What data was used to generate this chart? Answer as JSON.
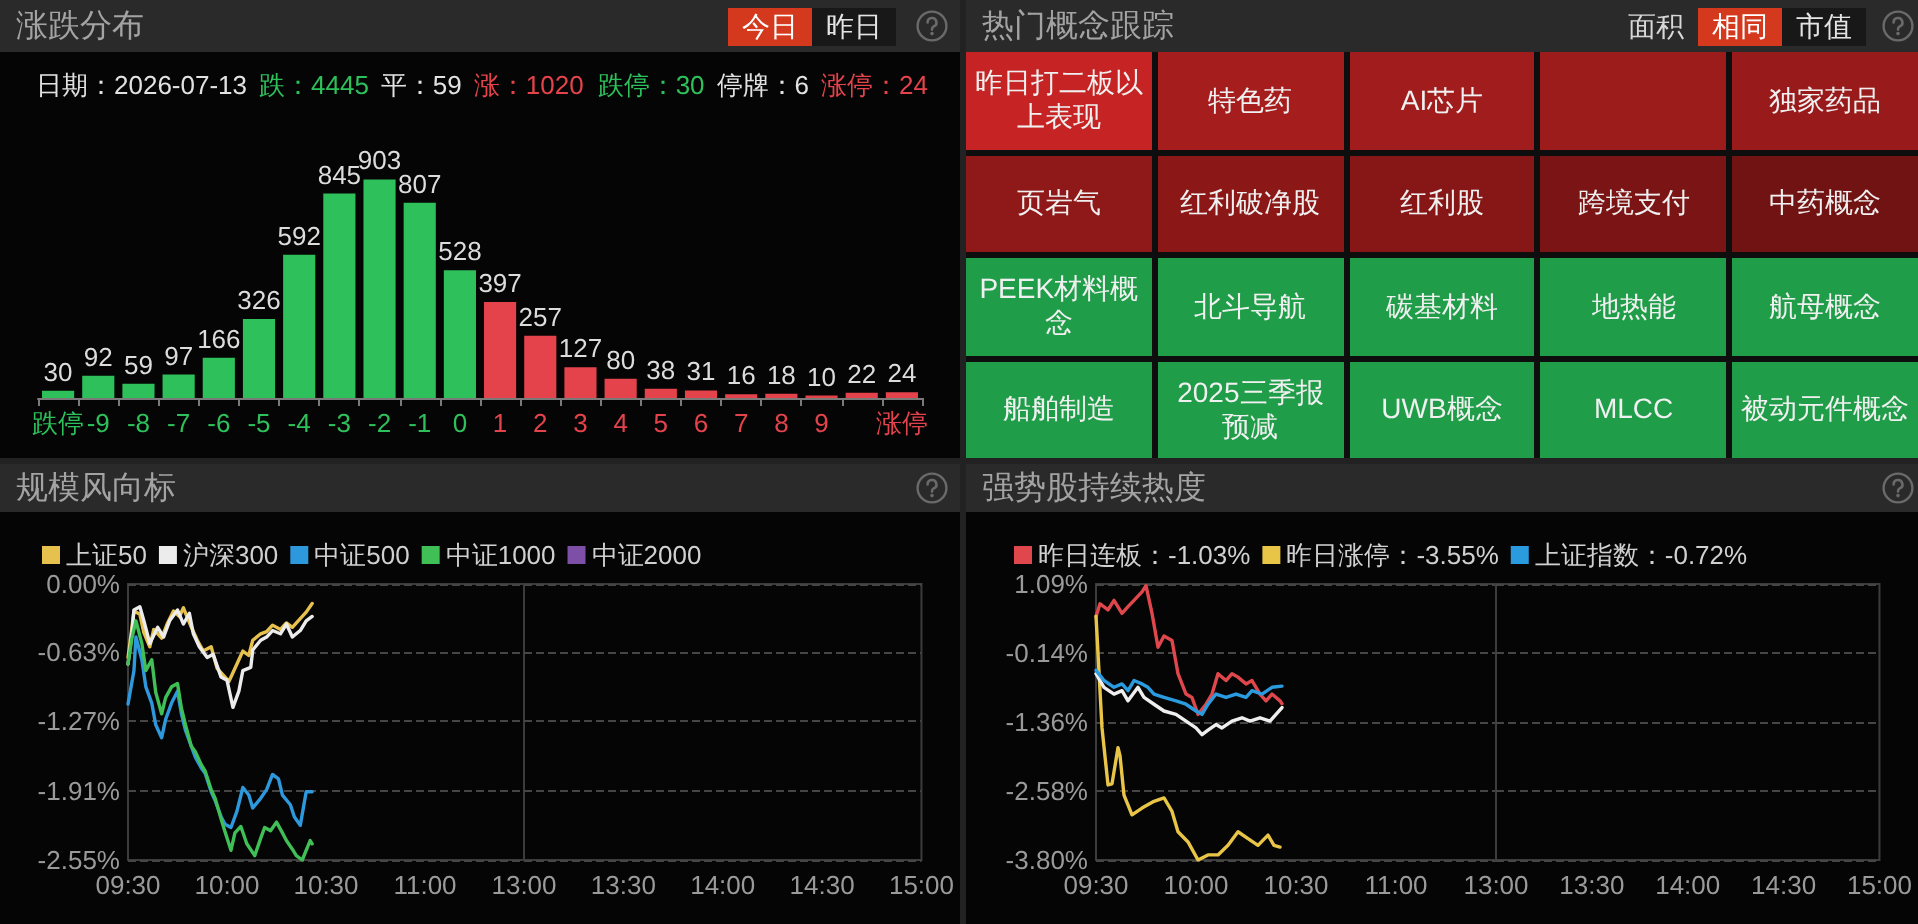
{
  "chart_data": [
    {
      "type": "bar",
      "title": "涨跌分布",
      "annotations": [
        "今日",
        "昨日",
        "日期：2026-07-13",
        "跌：4445",
        "平：59",
        "涨：1020",
        "跌停：30",
        "停牌：6",
        "涨停：24"
      ],
      "categories": [
        "跌停",
        "-9",
        "-8",
        "-7",
        "-6",
        "-5",
        "-4",
        "-3",
        "-2",
        "-1",
        "0",
        "1",
        "2",
        "3",
        "4",
        "5",
        "6",
        "7",
        "8",
        "9",
        null,
        "涨停"
      ],
      "values": [
        30,
        92,
        59,
        97,
        166,
        326,
        592,
        845,
        903,
        807,
        528,
        397,
        257,
        127,
        80,
        38,
        31,
        16,
        18,
        10,
        22,
        24
      ],
      "colors": [
        "#2ec05a",
        "#2ec05a",
        "#2ec05a",
        "#2ec05a",
        "#2ec05a",
        "#2ec05a",
        "#2ec05a",
        "#2ec05a",
        "#2ec05a",
        "#2ec05a",
        "#2ec05a",
        "#e4434b",
        "#e4434b",
        "#e4434b",
        "#e4434b",
        "#e4434b",
        "#e4434b",
        "#e4434b",
        "#e4434b",
        "#e4434b",
        "#e4434b",
        "#e4434b"
      ],
      "data_labels": true
    },
    {
      "type": "other",
      "title": "热门概念跟踪",
      "annotations": [
        "面积",
        "相同",
        "市值"
      ],
      "categories": [
        "昨日打二板以上表现",
        "特色药",
        "AI芯片",
        null,
        "独家药品",
        "页岩气",
        "红利破净股",
        "红利股",
        "跨境支付",
        "中药概念",
        "PEEK材料概念",
        "北斗导航",
        "碳基材料",
        "地热能",
        "航母概念",
        "船舶制造",
        "2025三季报预减",
        "UWB概念",
        "MLCC",
        "被动元件概念"
      ],
      "colors": [
        "#c62424",
        "#a51d1d",
        "#a11c1c",
        "#9c1b1b",
        "#991a1a",
        "#8f1818",
        "#8b1717",
        "#871616",
        "#7b1414",
        "#721313",
        "#1f9d48",
        "#1f9d48",
        "#1f9d48",
        "#1f9d48",
        "#1f9d48",
        "#1f9d48",
        "#1f9d48",
        "#1f9d48",
        "#1f9d48",
        "#1f9d48"
      ]
    },
    {
      "type": "line",
      "title": "规模风向标",
      "legend": "top",
      "grid": "y",
      "xlim": [
        9.5,
        11.5
      ],
      "xticks": [
        {
          "value": 9.5,
          "label": "09:30"
        },
        {
          "value": 10,
          "label": "10:00"
        },
        {
          "value": 10.5,
          "label": "10:30"
        },
        {
          "value": 11,
          "label": "11:00"
        }
      ],
      "ylim": [
        -2.55,
        0
      ],
      "yticks": [
        {
          "value": 0,
          "label": "0.00%"
        },
        {
          "value": -0.63,
          "label": "-0.63%"
        },
        {
          "value": -1.27,
          "label": "-1.27%"
        },
        {
          "value": -1.91,
          "label": "-1.91%"
        },
        {
          "value": -2.55,
          "label": "-2.55%"
        }
      ],
      "series": [
        {
          "name": "上证50",
          "color": "#e7c14d",
          "x": [
            9.5,
            9.52,
            9.53,
            9.56,
            9.58,
            9.61,
            9.63,
            9.67,
            9.7,
            9.73,
            9.76,
            9.78,
            9.82,
            9.85,
            9.88,
            9.92,
            9.95,
            9.98,
            10.01,
            10.03,
            10.06,
            10.08,
            10.11,
            10.13,
            10.17,
            10.2,
            10.23,
            10.27,
            10.3,
            10.33,
            10.37,
            10.4,
            10.43
          ],
          "values": [
            -0.68,
            -0.4,
            -0.25,
            -0.28,
            -0.45,
            -0.58,
            -0.42,
            -0.5,
            -0.36,
            -0.25,
            -0.3,
            -0.22,
            -0.4,
            -0.52,
            -0.62,
            -0.58,
            -0.78,
            -0.84,
            -0.9,
            -0.82,
            -0.7,
            -0.62,
            -0.66,
            -0.52,
            -0.46,
            -0.44,
            -0.38,
            -0.42,
            -0.36,
            -0.4,
            -0.32,
            -0.26,
            -0.18
          ]
        },
        {
          "name": "沪深300",
          "color": "#ececec",
          "x": [
            9.5,
            9.52,
            9.53,
            9.56,
            9.58,
            9.61,
            9.65,
            9.68,
            9.71,
            9.75,
            9.78,
            9.81,
            9.83,
            9.86,
            9.9,
            9.93,
            9.97,
            10,
            10.03,
            10.06,
            10.08,
            10.12,
            10.13,
            10.17,
            10.2,
            10.23,
            10.27,
            10.3,
            10.33,
            10.37,
            10.4,
            10.43
          ],
          "values": [
            -0.74,
            -0.45,
            -0.24,
            -0.21,
            -0.34,
            -0.55,
            -0.4,
            -0.49,
            -0.34,
            -0.24,
            -0.37,
            -0.27,
            -0.46,
            -0.58,
            -0.68,
            -0.65,
            -0.86,
            -0.89,
            -1.14,
            -0.99,
            -0.8,
            -0.77,
            -0.61,
            -0.52,
            -0.49,
            -0.43,
            -0.46,
            -0.37,
            -0.49,
            -0.43,
            -0.34,
            -0.3
          ]
        },
        {
          "name": "中证500",
          "color": "#2e98dc",
          "x": [
            9.5,
            9.53,
            9.54,
            9.57,
            9.59,
            9.62,
            9.64,
            9.67,
            9.69,
            9.72,
            9.75,
            9.77,
            9.79,
            9.82,
            9.84,
            9.87,
            9.89,
            9.92,
            9.94,
            9.97,
            9.99,
            10.02,
            10.05,
            10.08,
            10.11,
            10.13,
            10.17,
            10.2,
            10.23,
            10.26,
            10.28,
            10.32,
            10.34,
            10.37,
            10.4,
            10.43
          ],
          "values": [
            -1.11,
            -0.8,
            -0.49,
            -0.7,
            -0.95,
            -1.1,
            -1.3,
            -1.42,
            -1.25,
            -1.1,
            -0.99,
            -1.2,
            -1.35,
            -1.5,
            -1.6,
            -1.7,
            -1.75,
            -1.92,
            -2,
            -2.15,
            -2.22,
            -2.25,
            -2.1,
            -1.88,
            -1.95,
            -2.07,
            -1.98,
            -1.9,
            -1.76,
            -1.8,
            -1.95,
            -2.04,
            -2.15,
            -2.23,
            -1.92,
            -1.92
          ]
        },
        {
          "name": "中证1000",
          "color": "#3fbf55",
          "x": [
            9.5,
            9.52,
            9.54,
            9.57,
            9.59,
            9.62,
            9.64,
            9.67,
            9.69,
            9.72,
            9.75,
            9.77,
            9.79,
            9.82,
            9.84,
            9.87,
            9.89,
            9.92,
            9.94,
            9.97,
            9.99,
            10.02,
            10.04,
            10.07,
            10.1,
            10.14,
            10.17,
            10.19,
            10.22,
            10.25,
            10.28,
            10.3,
            10.33,
            10.35,
            10.38,
            10.42,
            10.43
          ],
          "values": [
            -0.74,
            -0.5,
            -0.34,
            -0.55,
            -0.8,
            -0.7,
            -1,
            -1.2,
            -1.05,
            -0.95,
            -0.92,
            -1.15,
            -1.3,
            -1.5,
            -1.55,
            -1.67,
            -1.73,
            -1.9,
            -1.98,
            -2.17,
            -2.29,
            -2.46,
            -2.3,
            -2.24,
            -2.4,
            -2.51,
            -2.35,
            -2.25,
            -2.28,
            -2.2,
            -2.3,
            -2.37,
            -2.45,
            -2.51,
            -2.55,
            -2.37,
            -2.4
          ]
        },
        {
          "name": "中证2000",
          "color": "#7d4fa6"
        }
      ]
    },
    {
      "type": "line",
      "grid": "y",
      "tick_labels": "x",
      "xlim": [
        13,
        15
      ],
      "xticks": [
        {
          "value": 13,
          "label": "13:00"
        },
        {
          "value": 13.5,
          "label": "13:30"
        },
        {
          "value": 14,
          "label": "14:00"
        },
        {
          "value": 14.5,
          "label": "14:30"
        },
        {
          "value": 15,
          "label": "15:00"
        }
      ],
      "ylim": [
        -2.55,
        0
      ],
      "yticks": [
        0,
        -0.63,
        -1.27,
        -1.91,
        -2.55
      ]
    },
    {
      "type": "line",
      "title": "强势股持续热度",
      "legend": "top",
      "grid": "y",
      "xlim": [
        9.5,
        11.5
      ],
      "xticks": [
        {
          "value": 9.5,
          "label": "09:30"
        },
        {
          "value": 10,
          "label": "10:00"
        },
        {
          "value": 10.5,
          "label": "10:30"
        },
        {
          "value": 11,
          "label": "11:00"
        }
      ],
      "ylim": [
        -3.8,
        1.09
      ],
      "yticks": [
        {
          "value": 1.09,
          "label": "1.09%"
        },
        {
          "value": -0.14,
          "label": "-0.14%"
        },
        {
          "value": -1.36,
          "label": "-1.36%"
        },
        {
          "value": -2.58,
          "label": "-2.58%"
        },
        {
          "value": -3.8,
          "label": "-3.80%"
        }
      ],
      "series": [
        {
          "name": "昨日连板：-1.03%",
          "color": "#e0474c",
          "x": [
            9.5,
            9.52,
            9.56,
            9.59,
            9.63,
            9.66,
            9.69,
            9.73,
            9.75,
            9.78,
            9.81,
            9.84,
            9.88,
            9.91,
            9.95,
            9.98,
            10.01,
            10.05,
            10.08,
            10.11,
            10.15,
            10.18,
            10.21,
            10.25,
            10.28,
            10.32,
            10.35,
            10.38,
            10.42,
            10.43
          ],
          "values": [
            0.51,
            0.74,
            0.63,
            0.8,
            0.57,
            0.69,
            0.8,
            0.95,
            1.06,
            0.57,
            -0.03,
            0.17,
            0.09,
            -0.5,
            -0.86,
            -0.92,
            -1.22,
            -1.04,
            -0.86,
            -0.5,
            -0.62,
            -0.5,
            -0.56,
            -0.68,
            -0.62,
            -0.86,
            -0.98,
            -0.86,
            -0.98,
            -1.03
          ]
        },
        {
          "name": "昨日涨停：-3.55%",
          "color": "#e8c547",
          "x": [
            9.5,
            9.53,
            9.56,
            9.58,
            9.61,
            9.62,
            9.64,
            9.68,
            9.73,
            9.79,
            9.84,
            9.88,
            9.91,
            9.96,
            10.01,
            10.06,
            10.11,
            10.16,
            10.21,
            10.26,
            10.31,
            10.36,
            10.39,
            10.42
          ],
          "values": [
            0.52,
            -1.46,
            -2.47,
            -2.45,
            -1.81,
            -1.95,
            -2.65,
            -3,
            -2.88,
            -2.76,
            -2.7,
            -2.94,
            -3.3,
            -3.48,
            -3.8,
            -3.71,
            -3.71,
            -3.54,
            -3.3,
            -3.42,
            -3.54,
            -3.36,
            -3.54,
            -3.57
          ]
        },
        {
          "color": "#eeeeee",
          "x": [
            9.5,
            9.54,
            9.59,
            9.63,
            9.66,
            9.71,
            9.74,
            9.79,
            9.84,
            9.9,
            9.95,
            10,
            10.03,
            10.06,
            10.1,
            10.13,
            10.18,
            10.23,
            10.27,
            10.32,
            10.37,
            10.4,
            10.43
          ],
          "values": [
            -0.5,
            -0.74,
            -0.86,
            -0.8,
            -0.98,
            -0.74,
            -0.92,
            -1.04,
            -1.16,
            -1.22,
            -1.34,
            -1.46,
            -1.58,
            -1.5,
            -1.4,
            -1.46,
            -1.34,
            -1.28,
            -1.34,
            -1.28,
            -1.34,
            -1.22,
            -1.1
          ]
        },
        {
          "name": "上证指数：-0.72%",
          "color": "#2b9be0",
          "x": [
            9.5,
            9.54,
            9.59,
            9.63,
            9.66,
            9.69,
            9.73,
            9.76,
            9.79,
            9.84,
            9.9,
            9.95,
            10,
            10.03,
            10.06,
            10.1,
            10.15,
            10.2,
            10.25,
            10.28,
            10.33,
            10.38,
            10.43
          ],
          "values": [
            -0.44,
            -0.62,
            -0.74,
            -0.68,
            -0.8,
            -0.62,
            -0.68,
            -0.74,
            -0.86,
            -0.92,
            -0.98,
            -1.04,
            -1.16,
            -1.22,
            -1.04,
            -0.86,
            -0.92,
            -0.86,
            -0.92,
            -0.8,
            -0.86,
            -0.74,
            -0.72
          ]
        }
      ]
    },
    {
      "type": "line",
      "grid": "y",
      "tick_labels": "x",
      "xlim": [
        13,
        15
      ],
      "xticks": [
        {
          "value": 13,
          "label": "13:00"
        },
        {
          "value": 13.5,
          "label": "13:30"
        },
        {
          "value": 14,
          "label": "14:00"
        },
        {
          "value": 14.5,
          "label": "14:30"
        },
        {
          "value": 15,
          "label": "15:00"
        }
      ],
      "ylim": [
        -3.8,
        1.09
      ],
      "yticks": [
        1.09,
        -0.14,
        -1.36,
        -2.58,
        -3.8
      ]
    }
  ]
}
